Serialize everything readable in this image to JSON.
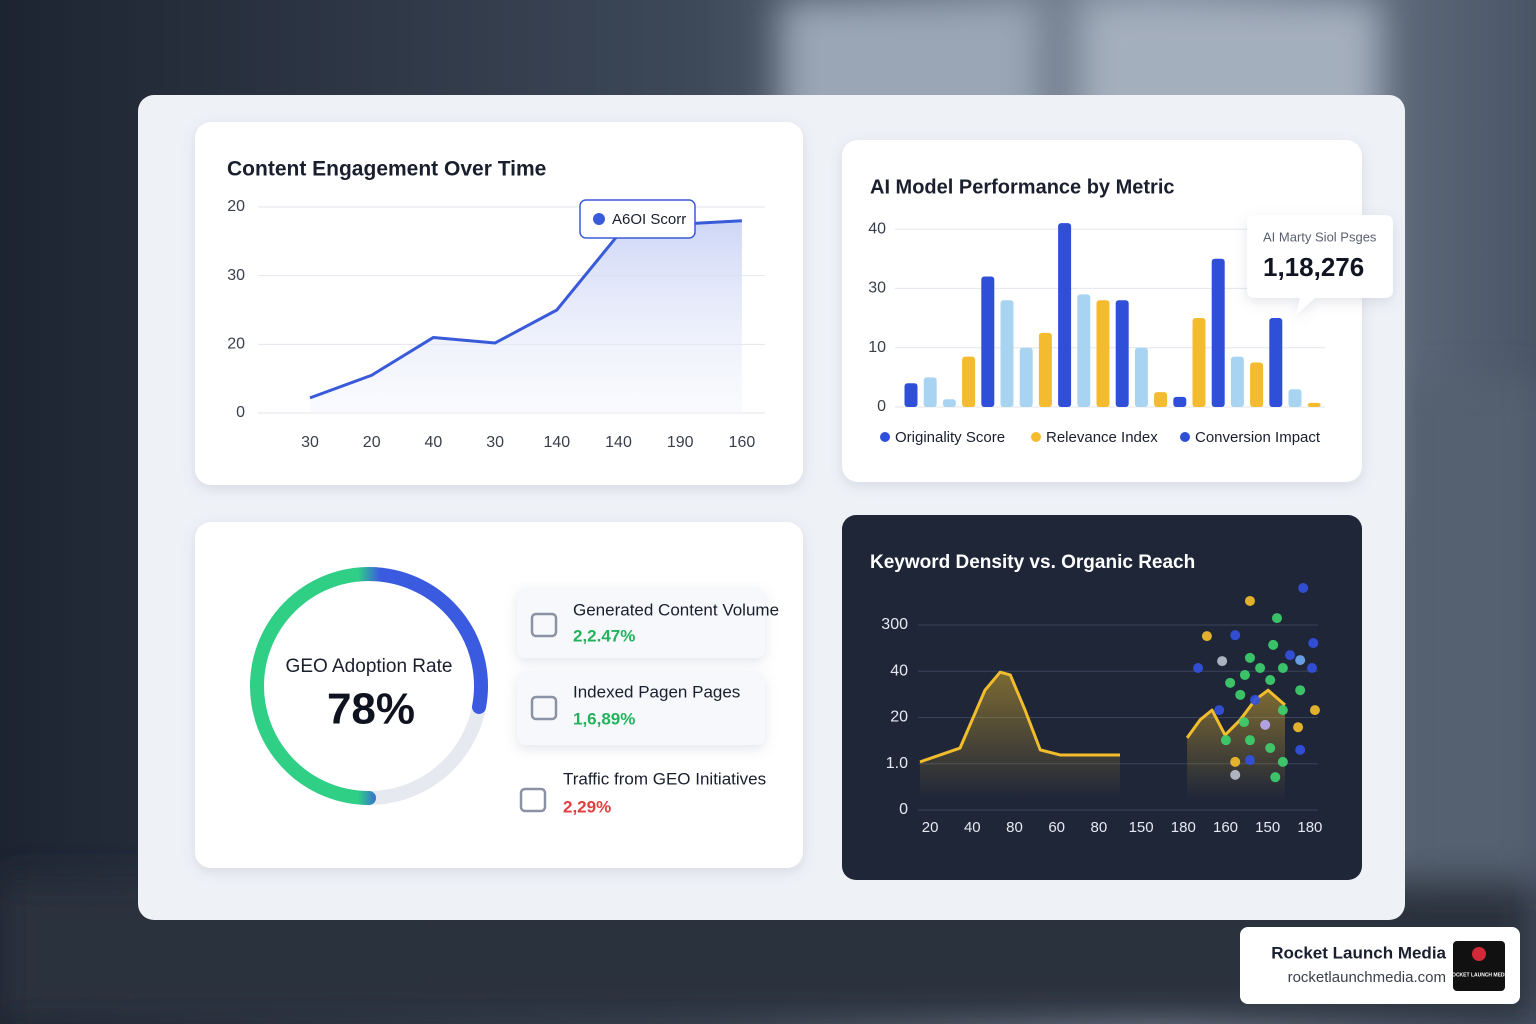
{
  "chart_data": [
    {
      "type": "line",
      "title": "Content Engagement Over Time",
      "categories": [
        "30",
        "20",
        "40",
        "30",
        "140",
        "140",
        "190",
        "160"
      ],
      "values": [
        2.2,
        5.5,
        11,
        10.2,
        15,
        26,
        27.5,
        28
      ],
      "color": "#3a5bd9",
      "ylim": [
        0,
        30
      ],
      "yticks": [
        0,
        {
          "value": 10,
          "label": "20"
        },
        {
          "value": 20,
          "label": "30"
        },
        {
          "value": 30,
          "label": "20"
        }
      ],
      "grid": true,
      "annotation": "A6OI Scorr"
    },
    {
      "type": "bar",
      "title": "AI Model Performance by Metric",
      "values": [
        4,
        5,
        1.3,
        8.5,
        22,
        18,
        10,
        12.5,
        31,
        19,
        18,
        18,
        10,
        2.5,
        1.7,
        15,
        25,
        8.5,
        7.5,
        15,
        3,
        0.7
      ],
      "colors": [
        "#2f4fd8",
        "#a8d4f2",
        "#a8d4f2",
        "#f4bb2e",
        "#2f4fd8",
        "#a8d4f2",
        "#a8d4f2",
        "#f4bb2e",
        "#2f4fd8",
        "#a8d4f2",
        "#f4bb2e",
        "#2f4fd8",
        "#a8d4f2",
        "#f4bb2e",
        "#2f4fd8",
        "#f4bb2e",
        "#2f4fd8",
        "#a8d4f2",
        "#f4bb2e",
        "#2f4fd8",
        "#a8d4f2",
        "#f4bb2e"
      ],
      "ylim": [
        0,
        33
      ],
      "yticks": [
        0,
        10,
        {
          "value": 20,
          "label": "30"
        },
        {
          "value": 30,
          "label": "40"
        }
      ],
      "grid": true,
      "legend": [
        {
          "name": "Originality Score",
          "color": "#2f4fd8"
        },
        {
          "name": "Relevance Index",
          "color": "#f4bb2e"
        },
        {
          "name": "Conversion Impact",
          "color": "#2f4fd8"
        }
      ],
      "callout": {
        "label": "AI Marty Siol Psges",
        "value": "1,18,276"
      }
    },
    {
      "type": "gauge",
      "title": "GEO Adoption Rate",
      "value": 78,
      "value_label": "78%",
      "range": [
        0,
        100
      ]
    },
    {
      "type": "scatter",
      "title": "Keyword Density vs. Organic Reach",
      "categories": [
        "20",
        "40",
        "80",
        "60",
        "80",
        "150",
        "180",
        "160",
        "150",
        "180"
      ],
      "xlim": [
        -0.5,
        9.5
      ],
      "ylim": [
        0,
        50
      ],
      "yticks": [
        0,
        {
          "value": 10,
          "label": "1.0"
        },
        20,
        {
          "value": 30,
          "label": "40"
        },
        {
          "value": 40,
          "label": "300"
        }
      ],
      "grid": true,
      "curves": [
        {
          "color": "#f2bd2c",
          "x": [
            -0.24,
            0.71,
            1.3,
            1.66,
            1.9,
            2.25,
            2.61,
            3.08,
            4.5
          ],
          "y": [
            10.4,
            13.4,
            25.9,
            29.8,
            29.2,
            21.6,
            13.0,
            11.9,
            11.9
          ]
        },
        {
          "color": "#f2bd2c",
          "x": [
            6.09,
            6.4,
            6.68,
            6.99,
            7.35,
            7.7,
            8.01,
            8.41
          ],
          "y": [
            15.6,
            19.5,
            21.6,
            16.2,
            19.5,
            23.8,
            25.9,
            22.7
          ]
        }
      ],
      "points": {
        "x": [
          8.84,
          7.58,
          8.22,
          6.56,
          7.23,
          8.13,
          9.08,
          6.92,
          7.58,
          7.82,
          8.53,
          9.05,
          8.77,
          6.35,
          8.36,
          7.46,
          7.11,
          8.06,
          8.77,
          7.35,
          7.7,
          6.85,
          8.36,
          9.12,
          7.94,
          8.72,
          7.44,
          7.01,
          7.58,
          8.06,
          8.77,
          7.23,
          8.36,
          8.18,
          7.23,
          7.58
        ],
        "y": [
          48.0,
          45.2,
          41.5,
          37.6,
          37.8,
          35.7,
          36.1,
          32.2,
          32.9,
          30.7,
          33.5,
          30.7,
          32.4,
          30.7,
          30.7,
          29.2,
          27.5,
          28.1,
          25.9,
          24.9,
          23.8,
          21.6,
          21.6,
          21.6,
          18.4,
          17.9,
          19.0,
          15.1,
          15.1,
          13.4,
          13.0,
          10.4,
          10.4,
          7.1,
          7.6,
          10.8
        ],
        "colors": [
          "#3350e0",
          "#f2bd2c",
          "#3ecf6e",
          "#f2bd2c",
          "#3350e0",
          "#3ecf6e",
          "#3350e0",
          "#b9bfcc",
          "#3ecf6e",
          "#3ecf6e",
          "#3350e0",
          "#3350e0",
          "#6fa8f0",
          "#3350e0",
          "#3ecf6e",
          "#3ecf6e",
          "#3ecf6e",
          "#3ecf6e",
          "#3ecf6e",
          "#3ecf6e",
          "#3350e0",
          "#3350e0",
          "#3ecf6e",
          "#f2bd2c",
          "#b8a8f0",
          "#f2bd2c",
          "#3ecf6e",
          "#3ecf6e",
          "#3ecf6e",
          "#3ecf6e",
          "#3350e0",
          "#f2bd2c",
          "#3ecf6e",
          "#3ecf6e",
          "#b9bfcc",
          "#3350e0"
        ]
      }
    }
  ],
  "kpis": [
    {
      "label": "Generated Content Volume",
      "value": "2,2.47%",
      "color": "#22b35e"
    },
    {
      "label": "Indexed Pagen Pages",
      "value": "1,6,89%",
      "color": "#22b35e"
    },
    {
      "label": "Traffic from GEO Initiatives",
      "value": "2,29%",
      "color": "#e04040"
    }
  ],
  "brand": {
    "name": "Rocket Launch Media",
    "url": "rocketlaunchmedia.com",
    "logo_text": "ROCKET LAUNCH MEDIA"
  }
}
